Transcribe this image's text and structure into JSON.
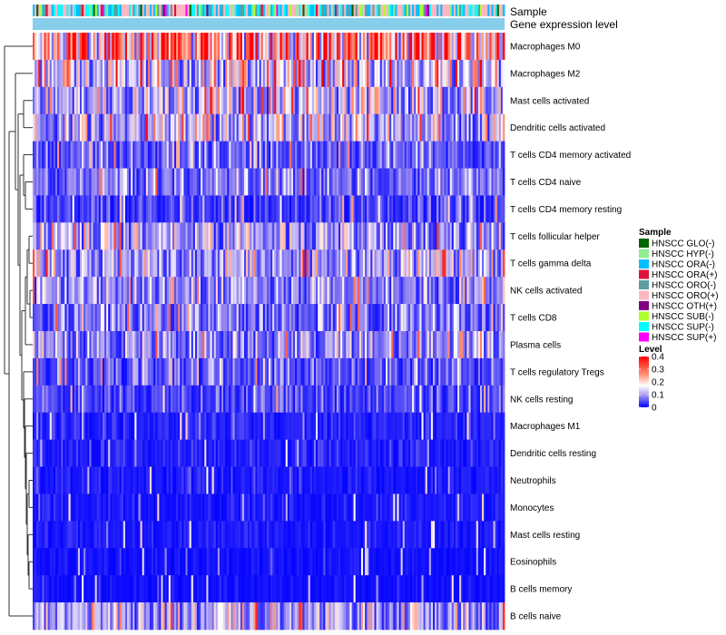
{
  "chart_data": {
    "type": "heatmap",
    "title": "",
    "n_samples": 250,
    "annotations": [
      {
        "key": "sample",
        "label": "Sample"
      },
      {
        "key": "gene_expression",
        "label": "Gene expression level"
      }
    ],
    "rows": [
      {
        "name": "Macrophages M0",
        "mean": 0.25
      },
      {
        "name": "Macrophages M2",
        "mean": 0.13
      },
      {
        "name": "Mast cells activated",
        "mean": 0.11
      },
      {
        "name": "Dendritic cells activated",
        "mean": 0.11
      },
      {
        "name": "T cells CD4 memory activated",
        "mean": 0.06
      },
      {
        "name": "T cells CD4 naive",
        "mean": 0.07
      },
      {
        "name": "T cells CD4 memory resting",
        "mean": 0.04
      },
      {
        "name": "T cells follicular helper",
        "mean": 0.09
      },
      {
        "name": "T cells gamma delta",
        "mean": 0.1
      },
      {
        "name": "NK cells activated",
        "mean": 0.08
      },
      {
        "name": "T cells CD8",
        "mean": 0.07
      },
      {
        "name": "Plasma cells",
        "mean": 0.08
      },
      {
        "name": "T cells regulatory  Tregs",
        "mean": 0.05
      },
      {
        "name": "NK cells resting",
        "mean": 0.04
      },
      {
        "name": "Macrophages M1",
        "mean": 0.02
      },
      {
        "name": "Dendritic cells resting",
        "mean": 0.02
      },
      {
        "name": "Neutrophils",
        "mean": 0.015
      },
      {
        "name": "Monocytes",
        "mean": 0.015
      },
      {
        "name": "Mast cells resting",
        "mean": 0.015
      },
      {
        "name": "Eosinophils",
        "mean": 0.01
      },
      {
        "name": "B cells memory",
        "mean": 0.01
      },
      {
        "name": "B cells naive",
        "mean": 0.1
      }
    ],
    "sample_groups": [
      {
        "name": "HNSCC GLO(-)",
        "color": "#006400"
      },
      {
        "name": "HNSCC HYP(-)",
        "color": "#90ee90"
      },
      {
        "name": "HNSCC ORA(-)",
        "color": "#00bfff"
      },
      {
        "name": "HNSCC ORA(+)",
        "color": "#dc143c"
      },
      {
        "name": "HNSCC ORO(-)",
        "color": "#5f9ea0"
      },
      {
        "name": "HNSCC ORO(+)",
        "color": "#ffb6c1"
      },
      {
        "name": "HNSCC OTH(+)",
        "color": "#800080"
      },
      {
        "name": "HNSCC SUB(-)",
        "color": "#adff2f"
      },
      {
        "name": "HNSCC SUP(-)",
        "color": "#00ffff"
      },
      {
        "name": "HNSCC SUP(+)",
        "color": "#ff00ff"
      }
    ],
    "gene_expression_color": "#87ceeb",
    "color_scale": {
      "title": "Level",
      "min": 0,
      "max": 0.4,
      "ticks": [
        0.4,
        0.3,
        0.2,
        0.1,
        0
      ],
      "tick_labels": [
        "0.4",
        "0.3",
        "0.2",
        "0.1",
        "0"
      ],
      "stops": [
        {
          "value": 0,
          "color": "#0000ff"
        },
        {
          "value": 0.1,
          "color": "#b0a0ee"
        },
        {
          "value": 0.17,
          "color": "#ffffff"
        },
        {
          "value": 0.25,
          "color": "#ff9a80"
        },
        {
          "value": 0.4,
          "color": "#ff0000"
        }
      ]
    },
    "legend_placement": "right"
  }
}
